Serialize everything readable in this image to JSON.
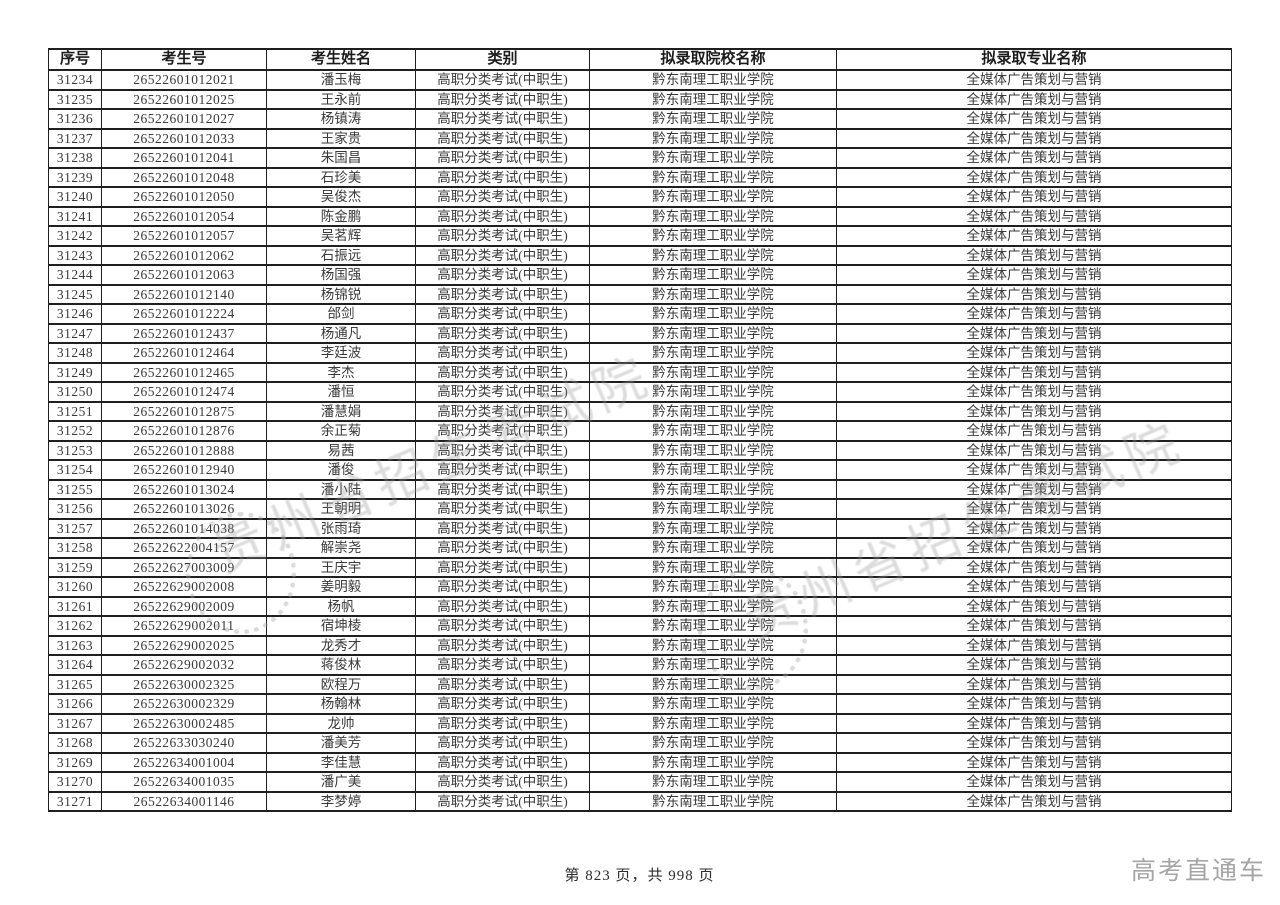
{
  "table": {
    "columns": [
      "序号",
      "考生号",
      "考生姓名",
      "类别",
      "拟录取院校名称",
      "拟录取专业名称"
    ],
    "rows": [
      [
        "31234",
        "26522601012021",
        "潘玉梅",
        "高职分类考试(中职生)",
        "黔东南理工职业学院",
        "全媒体广告策划与营销"
      ],
      [
        "31235",
        "26522601012025",
        "王永前",
        "高职分类考试(中职生)",
        "黔东南理工职业学院",
        "全媒体广告策划与营销"
      ],
      [
        "31236",
        "26522601012027",
        "杨镇涛",
        "高职分类考试(中职生)",
        "黔东南理工职业学院",
        "全媒体广告策划与营销"
      ],
      [
        "31237",
        "26522601012033",
        "王家贵",
        "高职分类考试(中职生)",
        "黔东南理工职业学院",
        "全媒体广告策划与营销"
      ],
      [
        "31238",
        "26522601012041",
        "朱国昌",
        "高职分类考试(中职生)",
        "黔东南理工职业学院",
        "全媒体广告策划与营销"
      ],
      [
        "31239",
        "26522601012048",
        "石珍美",
        "高职分类考试(中职生)",
        "黔东南理工职业学院",
        "全媒体广告策划与营销"
      ],
      [
        "31240",
        "26522601012050",
        "吴俊杰",
        "高职分类考试(中职生)",
        "黔东南理工职业学院",
        "全媒体广告策划与营销"
      ],
      [
        "31241",
        "26522601012054",
        "陈金鹏",
        "高职分类考试(中职生)",
        "黔东南理工职业学院",
        "全媒体广告策划与营销"
      ],
      [
        "31242",
        "26522601012057",
        "吴茗辉",
        "高职分类考试(中职生)",
        "黔东南理工职业学院",
        "全媒体广告策划与营销"
      ],
      [
        "31243",
        "26522601012062",
        "石振远",
        "高职分类考试(中职生)",
        "黔东南理工职业学院",
        "全媒体广告策划与营销"
      ],
      [
        "31244",
        "26522601012063",
        "杨国强",
        "高职分类考试(中职生)",
        "黔东南理工职业学院",
        "全媒体广告策划与营销"
      ],
      [
        "31245",
        "26522601012140",
        "杨锦锐",
        "高职分类考试(中职生)",
        "黔东南理工职业学院",
        "全媒体广告策划与营销"
      ],
      [
        "31246",
        "26522601012224",
        "邰剑",
        "高职分类考试(中职生)",
        "黔东南理工职业学院",
        "全媒体广告策划与营销"
      ],
      [
        "31247",
        "26522601012437",
        "杨通凡",
        "高职分类考试(中职生)",
        "黔东南理工职业学院",
        "全媒体广告策划与营销"
      ],
      [
        "31248",
        "26522601012464",
        "李廷波",
        "高职分类考试(中职生)",
        "黔东南理工职业学院",
        "全媒体广告策划与营销"
      ],
      [
        "31249",
        "26522601012465",
        "李杰",
        "高职分类考试(中职生)",
        "黔东南理工职业学院",
        "全媒体广告策划与营销"
      ],
      [
        "31250",
        "26522601012474",
        "潘恒",
        "高职分类考试(中职生)",
        "黔东南理工职业学院",
        "全媒体广告策划与营销"
      ],
      [
        "31251",
        "26522601012875",
        "潘慧娟",
        "高职分类考试(中职生)",
        "黔东南理工职业学院",
        "全媒体广告策划与营销"
      ],
      [
        "31252",
        "26522601012876",
        "余正菊",
        "高职分类考试(中职生)",
        "黔东南理工职业学院",
        "全媒体广告策划与营销"
      ],
      [
        "31253",
        "26522601012888",
        "易茜",
        "高职分类考试(中职生)",
        "黔东南理工职业学院",
        "全媒体广告策划与营销"
      ],
      [
        "31254",
        "26522601012940",
        "潘俊",
        "高职分类考试(中职生)",
        "黔东南理工职业学院",
        "全媒体广告策划与营销"
      ],
      [
        "31255",
        "26522601013024",
        "潘小陆",
        "高职分类考试(中职生)",
        "黔东南理工职业学院",
        "全媒体广告策划与营销"
      ],
      [
        "31256",
        "26522601013026",
        "王朝明",
        "高职分类考试(中职生)",
        "黔东南理工职业学院",
        "全媒体广告策划与营销"
      ],
      [
        "31257",
        "26522601014038",
        "张雨琦",
        "高职分类考试(中职生)",
        "黔东南理工职业学院",
        "全媒体广告策划与营销"
      ],
      [
        "31258",
        "26522622004157",
        "解崇尧",
        "高职分类考试(中职生)",
        "黔东南理工职业学院",
        "全媒体广告策划与营销"
      ],
      [
        "31259",
        "26522627003009",
        "王庆宇",
        "高职分类考试(中职生)",
        "黔东南理工职业学院",
        "全媒体广告策划与营销"
      ],
      [
        "31260",
        "26522629002008",
        "姜明毅",
        "高职分类考试(中职生)",
        "黔东南理工职业学院",
        "全媒体广告策划与营销"
      ],
      [
        "31261",
        "26522629002009",
        "杨帆",
        "高职分类考试(中职生)",
        "黔东南理工职业学院",
        "全媒体广告策划与营销"
      ],
      [
        "31262",
        "26522629002011",
        "宿坤棱",
        "高职分类考试(中职生)",
        "黔东南理工职业学院",
        "全媒体广告策划与营销"
      ],
      [
        "31263",
        "26522629002025",
        "龙秀才",
        "高职分类考试(中职生)",
        "黔东南理工职业学院",
        "全媒体广告策划与营销"
      ],
      [
        "31264",
        "26522629002032",
        "蒋俊林",
        "高职分类考试(中职生)",
        "黔东南理工职业学院",
        "全媒体广告策划与营销"
      ],
      [
        "31265",
        "26522630002325",
        "欧程万",
        "高职分类考试(中职生)",
        "黔东南理工职业学院",
        "全媒体广告策划与营销"
      ],
      [
        "31266",
        "26522630002329",
        "杨翰林",
        "高职分类考试(中职生)",
        "黔东南理工职业学院",
        "全媒体广告策划与营销"
      ],
      [
        "31267",
        "26522630002485",
        "龙帅",
        "高职分类考试(中职生)",
        "黔东南理工职业学院",
        "全媒体广告策划与营销"
      ],
      [
        "31268",
        "26522633030240",
        "潘美芳",
        "高职分类考试(中职生)",
        "黔东南理工职业学院",
        "全媒体广告策划与营销"
      ],
      [
        "31269",
        "26522634001004",
        "李佳慧",
        "高职分类考试(中职生)",
        "黔东南理工职业学院",
        "全媒体广告策划与营销"
      ],
      [
        "31270",
        "26522634001035",
        "潘广美",
        "高职分类考试(中职生)",
        "黔东南理工职业学院",
        "全媒体广告策划与营销"
      ],
      [
        "31271",
        "26522634001146",
        "李梦婷",
        "高职分类考试(中职生)",
        "黔东南理工职业学院",
        "全媒体广告策划与营销"
      ]
    ]
  },
  "footer": {
    "page_info": "第 823 页，共 998 页"
  },
  "brand": {
    "name": "高考直通车"
  },
  "watermark": {
    "text": "贵州省招生考试院"
  }
}
